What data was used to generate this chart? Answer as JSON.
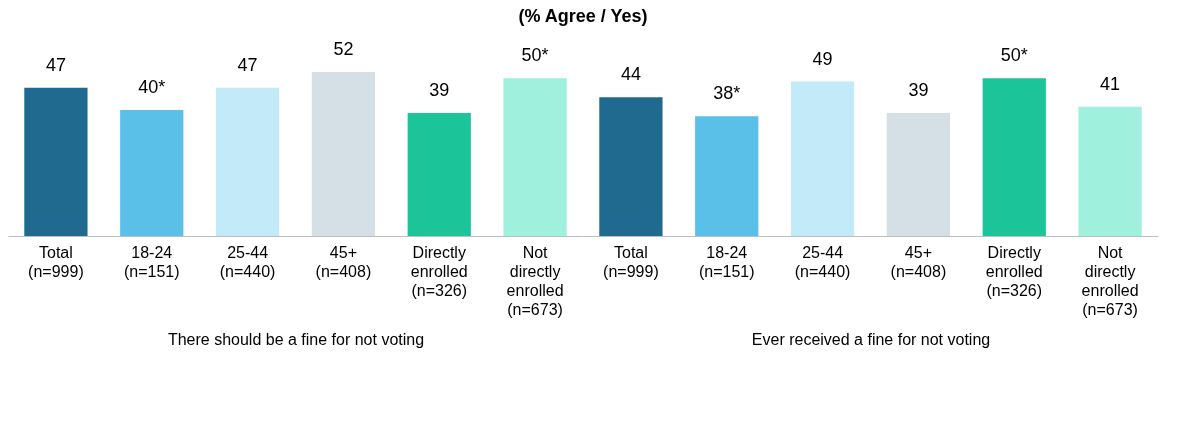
{
  "chart_data": [
    {
      "type": "bar",
      "title": "(% Agree / Yes)",
      "xlabel": "There should be a fine for not voting",
      "categories": [
        "Total (n=999)",
        "18-24 (n=151)",
        "25-44 (n=440)",
        "45+ (n=408)",
        "Directly enrolled (n=326)",
        "Not directly enrolled (n=673)"
      ],
      "values": [
        47,
        40,
        47,
        52,
        39,
        50
      ],
      "value_labels": [
        "47",
        "40*",
        "47",
        "52",
        "39",
        "50*"
      ],
      "colors": [
        "#1f6a8e",
        "#5bc0e8",
        "#c2eaf8",
        "#d5e0e6",
        "#1cc49a",
        "#9ff0dc"
      ],
      "tick_labels": "x"
    },
    {
      "type": "bar",
      "xlabel": "Ever received a fine for not voting",
      "categories": [
        "Total (n=999)",
        "18-24 (n=151)",
        "25-44 (n=440)",
        "45+ (n=408)",
        "Directly enrolled (n=326)",
        "Not directly enrolled (n=673)"
      ],
      "values": [
        44,
        38,
        49,
        39,
        50,
        41
      ],
      "value_labels": [
        "44",
        "38*",
        "49",
        "39",
        "50*",
        "41"
      ],
      "colors": [
        "#1f6a8e",
        "#5bc0e8",
        "#c2eaf8",
        "#d5e0e6",
        "#1cc49a",
        "#9ff0dc"
      ],
      "tick_labels": "x"
    }
  ]
}
